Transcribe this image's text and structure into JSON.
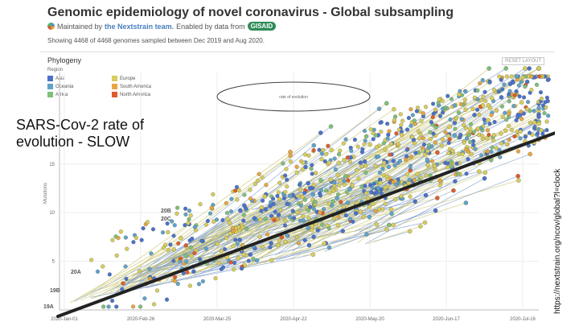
{
  "header": {
    "title": "Genomic epidemiology of novel coronavirus - Global subsampling",
    "maintained_prefix": "Maintained by",
    "maintained_team": "the Nextstrain team.",
    "enabled_text": "Enabled by data from",
    "gisaid_label": "GISAID",
    "showing": "Showing 4468 of 4468 genomes sampled between Dec 2019 and Aug 2020."
  },
  "panel": {
    "title": "Phylogeny",
    "reset_label": "RESET LAYOUT",
    "legend_title": "Region",
    "legend": [
      {
        "label": "Asia",
        "color": "#4a72c9"
      },
      {
        "label": "Europe",
        "color": "#d8cd5c"
      },
      {
        "label": "Oceania",
        "color": "#5fa3c8"
      },
      {
        "label": "South America",
        "color": "#e8a640"
      },
      {
        "label": "Africa",
        "color": "#7fbf7a"
      },
      {
        "label": "North America",
        "color": "#e05b2b"
      }
    ]
  },
  "chart_data": {
    "type": "scatter",
    "ylabel": "Mutations",
    "ytick_labels": [
      "5",
      "10",
      "15"
    ],
    "yticks": [
      5,
      10,
      15
    ],
    "ylim": [
      0,
      24
    ],
    "xtick_labels": [
      "2020-Jan-01",
      "2020-Feb-26",
      "2020-Mar-25",
      "2020-Apr-22",
      "2020-May-20",
      "2020-Jun-17",
      "2020-Jul-16"
    ],
    "clade_labels": [
      "19A",
      "19B",
      "20A",
      "20B",
      "20C"
    ],
    "annotation": "rate of evolution"
  },
  "overlay": {
    "title": "SARS-Cov-2 rate of evolution - SLOW",
    "source": "https://nextstrain.org/ncov/global?l=clock"
  }
}
